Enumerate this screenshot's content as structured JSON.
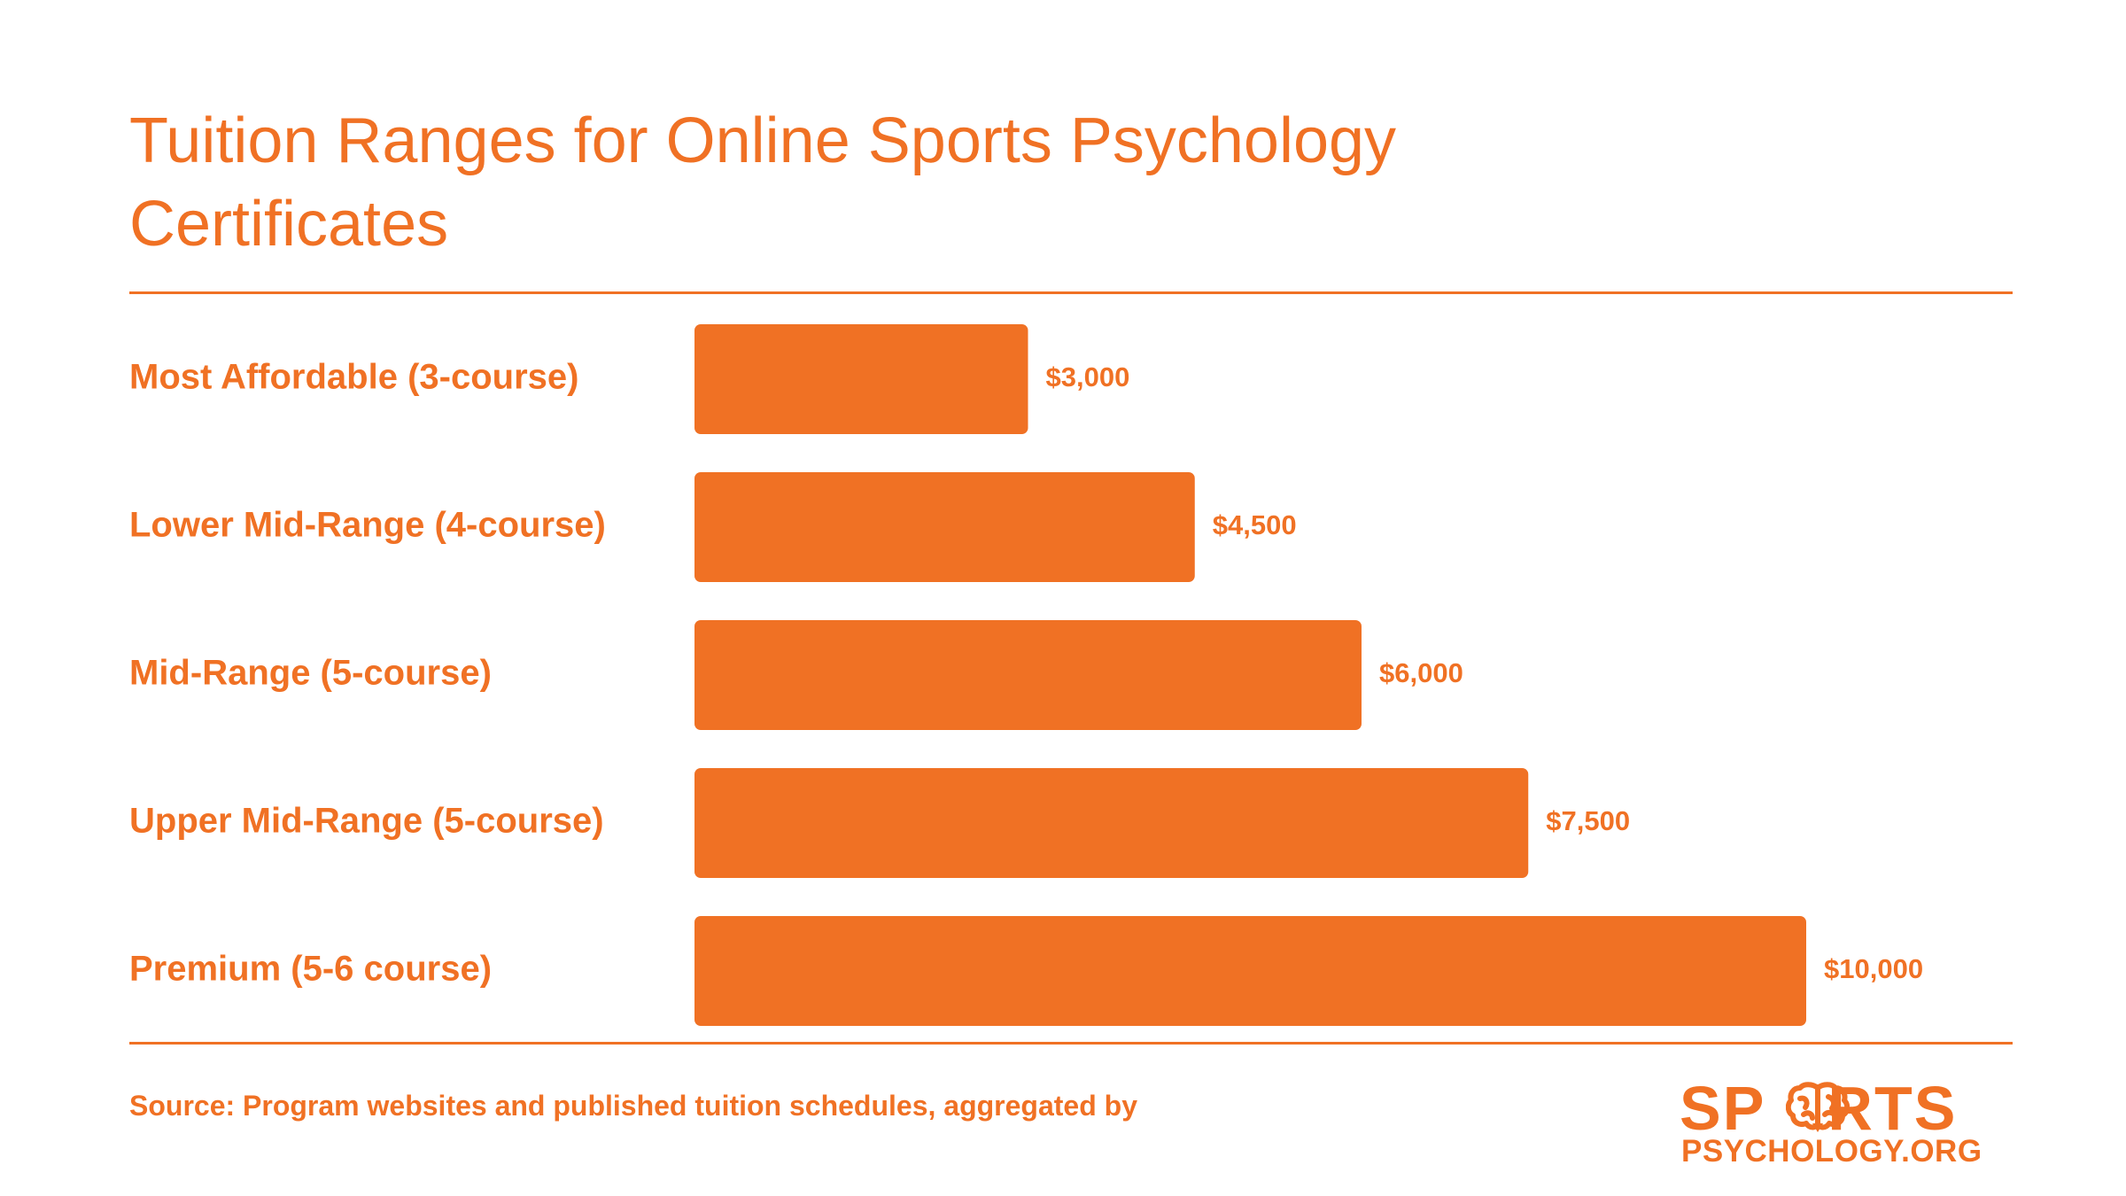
{
  "title": "Tuition Ranges for Online Sports Psychology Certificates",
  "source": "Source: Program websites and published tuition schedules, aggregated by",
  "logo": {
    "line1_left": "SP",
    "line1_right": "RTS",
    "line2": "PSYCHOLOGY.ORG",
    "icon": "brain-icon"
  },
  "colors": {
    "accent": "#f07124",
    "background": "#ffffff"
  },
  "chart_data": {
    "type": "bar",
    "orientation": "horizontal",
    "categories": [
      "Most Affordable (3-course)",
      "Lower Mid-Range (4-course)",
      "Mid-Range (5-course)",
      "Upper Mid-Range (5-course)",
      "Premium (5-6 course)"
    ],
    "values": [
      3000,
      4500,
      6000,
      7500,
      10000
    ],
    "value_labels": [
      "$3,000",
      "$4,500",
      "$6,000",
      "$7,500",
      "$10,000"
    ],
    "title": "Tuition Ranges for Online Sports Psychology Certificates",
    "xlabel": "",
    "ylabel": "",
    "xlim": [
      0,
      10000
    ],
    "grid": false,
    "bar_color": "#f07124"
  }
}
